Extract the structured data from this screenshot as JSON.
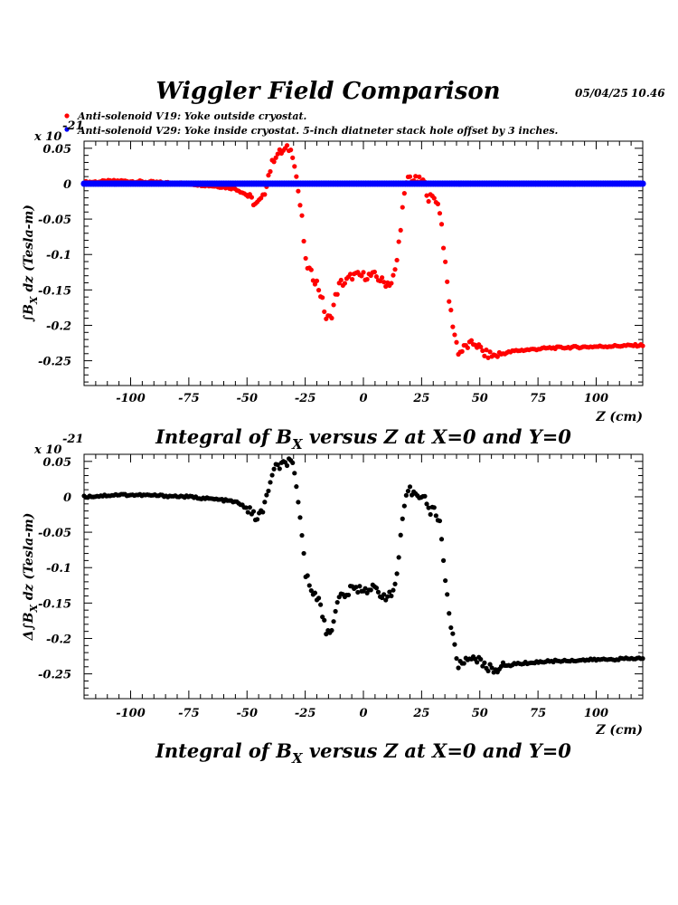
{
  "header": {
    "title": "Wiggler Field Comparison",
    "date": "05/04/25",
    "time": "10.46"
  },
  "legend": [
    {
      "label": "Anti-solenoid V19: Yoke outside cryostat.",
      "color": "#ff0000"
    },
    {
      "label": "Anti-solenoid V29: Yoke inside cryostat. 5-inch diatneter stack hole offset by 3 inches.",
      "color": "#0000ff"
    }
  ],
  "chart_data": [
    {
      "type": "scatter",
      "title": "Integral of B_X versus Z at X=0 and Y=0",
      "title_parts": {
        "pre": "Integral of B",
        "sub": "X",
        "post": " versus Z at X=0 and Y=0"
      },
      "xlabel": "Z (cm)",
      "ylabel": "∫B_X dz (Tesla-m)",
      "ylabel_parts": {
        "pre": "∫B",
        "sub": "X",
        "post": " dz  (Tesla-m)"
      },
      "y_multiplier": {
        "base": "x 10",
        "exponent": "-21"
      },
      "xlim": [
        -120,
        120
      ],
      "ylim": [
        -0.285,
        0.06
      ],
      "xticks": [
        -100,
        -75,
        -50,
        -25,
        0,
        25,
        50,
        75,
        100
      ],
      "xtick_labels": [
        "-100",
        "-75",
        "-50",
        "-25",
        "0",
        "25",
        "50",
        "75",
        "100"
      ],
      "yticks": [
        0.05,
        0,
        -0.05,
        -0.1,
        -0.15,
        -0.2,
        -0.25
      ],
      "ytick_labels": [
        "0.05",
        "0",
        "-0.05",
        "-0.1",
        "-0.15",
        "-0.2",
        "-0.25"
      ],
      "series": [
        {
          "name": "Anti-solenoid V19: Yoke outside cryostat.",
          "color": "#ff0000",
          "control_points": [
            [
              -120,
              0.002
            ],
            [
              -105,
              0.004
            ],
            [
              -90,
              0.002
            ],
            [
              -75,
              0.0
            ],
            [
              -62,
              -0.004
            ],
            [
              -55,
              -0.007
            ],
            [
              -50,
              -0.016
            ],
            [
              -46,
              -0.03
            ],
            [
              -43,
              -0.02
            ],
            [
              -41,
              0.01
            ],
            [
              -38,
              0.04
            ],
            [
              -35,
              0.045
            ],
            [
              -32,
              0.05
            ],
            [
              -30,
              0.04
            ],
            [
              -28,
              -0.01
            ],
            [
              -26,
              -0.06
            ],
            [
              -25,
              -0.11
            ],
            [
              -22,
              -0.13
            ],
            [
              -20,
              -0.14
            ],
            [
              -18,
              -0.16
            ],
            [
              -16,
              -0.19
            ],
            [
              -14,
              -0.19
            ],
            [
              -12,
              -0.16
            ],
            [
              -10,
              -0.14
            ],
            [
              -8,
              -0.14
            ],
            [
              -5,
              -0.13
            ],
            [
              0,
              -0.13
            ],
            [
              5,
              -0.13
            ],
            [
              9,
              -0.14
            ],
            [
              12,
              -0.14
            ],
            [
              14,
              -0.12
            ],
            [
              15,
              -0.09
            ],
            [
              17,
              -0.03
            ],
            [
              19,
              0.01
            ],
            [
              22,
              0.005
            ],
            [
              26,
              0.003
            ],
            [
              28,
              -0.02
            ],
            [
              31,
              -0.02
            ],
            [
              33,
              -0.04
            ],
            [
              34,
              -0.07
            ],
            [
              35,
              -0.11
            ],
            [
              37,
              -0.17
            ],
            [
              39,
              -0.21
            ],
            [
              41,
              -0.24
            ],
            [
              44,
              -0.23
            ],
            [
              48,
              -0.225
            ],
            [
              52,
              -0.24
            ],
            [
              56,
              -0.243
            ],
            [
              65,
              -0.236
            ],
            [
              80,
              -0.232
            ],
            [
              100,
              -0.23
            ],
            [
              120,
              -0.228
            ]
          ]
        },
        {
          "name": "Anti-solenoid V29: Yoke inside cryostat. 5-inch diatneter stack hole offset by 3 inches.",
          "color": "#0000ff",
          "control_points": [
            [
              -120,
              0.0
            ],
            [
              120,
              0.0
            ]
          ]
        }
      ]
    },
    {
      "type": "scatter",
      "title": "Integral of B_X versus Z at X=0 and Y=0",
      "title_parts": {
        "pre": "Integral of B",
        "sub": "X",
        "post": " versus Z at X=0 and Y=0"
      },
      "xlabel": "Z (cm)",
      "ylabel": "Δ∫B_X dz (Tesla-m)",
      "ylabel_parts": {
        "pre": "Δ∫B",
        "sub": "X",
        "post": " dz  (Tesla-m)"
      },
      "y_multiplier": {
        "base": "x 10",
        "exponent": "-21"
      },
      "xlim": [
        -120,
        120
      ],
      "ylim": [
        -0.285,
        0.06
      ],
      "xticks": [
        -100,
        -75,
        -50,
        -25,
        0,
        25,
        50,
        75,
        100
      ],
      "xtick_labels": [
        "-100",
        "-75",
        "-50",
        "-25",
        "0",
        "25",
        "50",
        "75",
        "100"
      ],
      "yticks": [
        0.05,
        0,
        -0.05,
        -0.1,
        -0.15,
        -0.2,
        -0.25
      ],
      "ytick_labels": [
        "0.05",
        "0",
        "-0.05",
        "-0.1",
        "-0.15",
        "-0.2",
        "-0.25"
      ],
      "series": [
        {
          "color": "#000000",
          "control_points": [
            [
              -120,
              0.0
            ],
            [
              -105,
              0.003
            ],
            [
              -90,
              0.002
            ],
            [
              -75,
              0.0
            ],
            [
              -62,
              -0.004
            ],
            [
              -55,
              -0.007
            ],
            [
              -50,
              -0.016
            ],
            [
              -46,
              -0.03
            ],
            [
              -43,
              -0.02
            ],
            [
              -41,
              0.01
            ],
            [
              -38,
              0.04
            ],
            [
              -35,
              0.045
            ],
            [
              -32,
              0.05
            ],
            [
              -30,
              0.04
            ],
            [
              -28,
              -0.01
            ],
            [
              -26,
              -0.06
            ],
            [
              -25,
              -0.11
            ],
            [
              -22,
              -0.13
            ],
            [
              -20,
              -0.14
            ],
            [
              -18,
              -0.16
            ],
            [
              -16,
              -0.19
            ],
            [
              -14,
              -0.19
            ],
            [
              -12,
              -0.16
            ],
            [
              -10,
              -0.14
            ],
            [
              -8,
              -0.14
            ],
            [
              -5,
              -0.13
            ],
            [
              0,
              -0.13
            ],
            [
              5,
              -0.13
            ],
            [
              9,
              -0.14
            ],
            [
              12,
              -0.14
            ],
            [
              14,
              -0.12
            ],
            [
              15,
              -0.09
            ],
            [
              17,
              -0.03
            ],
            [
              19,
              0.01
            ],
            [
              22,
              0.005
            ],
            [
              26,
              0.003
            ],
            [
              28,
              -0.02
            ],
            [
              31,
              -0.02
            ],
            [
              33,
              -0.04
            ],
            [
              34,
              -0.07
            ],
            [
              35,
              -0.11
            ],
            [
              37,
              -0.17
            ],
            [
              39,
              -0.21
            ],
            [
              41,
              -0.24
            ],
            [
              44,
              -0.23
            ],
            [
              48,
              -0.225
            ],
            [
              52,
              -0.24
            ],
            [
              56,
              -0.243
            ],
            [
              65,
              -0.236
            ],
            [
              80,
              -0.232
            ],
            [
              100,
              -0.23
            ],
            [
              120,
              -0.228
            ]
          ]
        }
      ]
    }
  ]
}
